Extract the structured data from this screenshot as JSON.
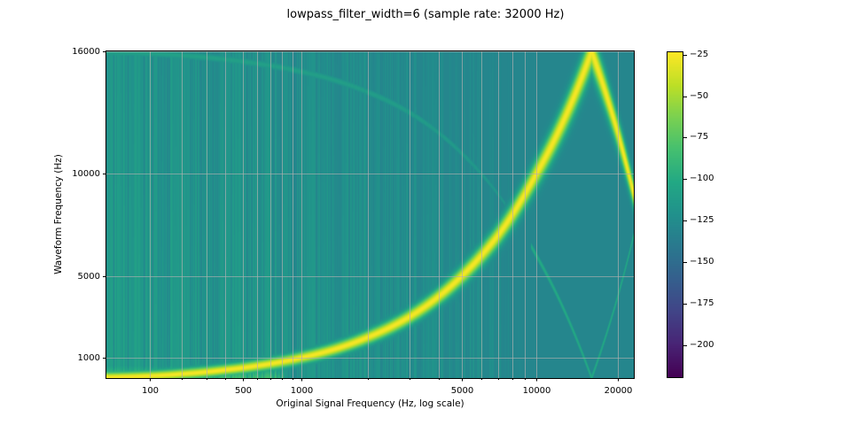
{
  "chart_data": {
    "type": "heatmap",
    "title": "lowpass_filter_width=6 (sample rate: 32000 Hz)",
    "xlabel": "Original Signal Frequency (Hz, log scale)",
    "ylabel": "Waveform Frequency (Hz)",
    "x_scale": "log",
    "xlim": [
      40,
      23000
    ],
    "ylim": [
      0,
      16000
    ],
    "x_ticks_labeled": [
      {
        "value": 100,
        "label": "100"
      },
      {
        "value": 500,
        "label": "500"
      },
      {
        "value": 1000,
        "label": "1000"
      },
      {
        "value": 5000,
        "label": "5000"
      },
      {
        "value": 10000,
        "label": "10000"
      },
      {
        "value": 20000,
        "label": "20000"
      }
    ],
    "x_ticks_minor": [
      200,
      300,
      400,
      600,
      700,
      800,
      900,
      2000,
      3000,
      4000,
      6000,
      7000,
      8000,
      9000
    ],
    "y_ticks": [
      {
        "value": 1000,
        "label": "1000"
      },
      {
        "value": 5000,
        "label": "5000"
      },
      {
        "value": 10000,
        "label": "10000"
      },
      {
        "value": 16000,
        "label": "16000"
      }
    ],
    "grid": true,
    "colormap": "viridis",
    "colorbar": {
      "range": [
        -220,
        -23
      ],
      "ticks": [
        {
          "value": -25,
          "label": "−25"
        },
        {
          "value": -50,
          "label": "−50"
        },
        {
          "value": -75,
          "label": "−75"
        },
        {
          "value": -100,
          "label": "−100"
        },
        {
          "value": -125,
          "label": "−125"
        },
        {
          "value": -150,
          "label": "−150"
        },
        {
          "value": -175,
          "label": "−175"
        },
        {
          "value": -200,
          "label": "−200"
        }
      ]
    },
    "features": [
      {
        "desc": "main sweep",
        "waveform_freq": "f (f<16000), 32000-f (f>16000)",
        "peak_db": -25
      },
      {
        "desc": "alias",
        "waveform_freq": "16000-f",
        "peak_db": -110
      },
      {
        "desc": "alias",
        "waveform_freq": "|f-16000| near Nyquist",
        "peak_db": -95
      }
    ],
    "background_db": -130
  }
}
